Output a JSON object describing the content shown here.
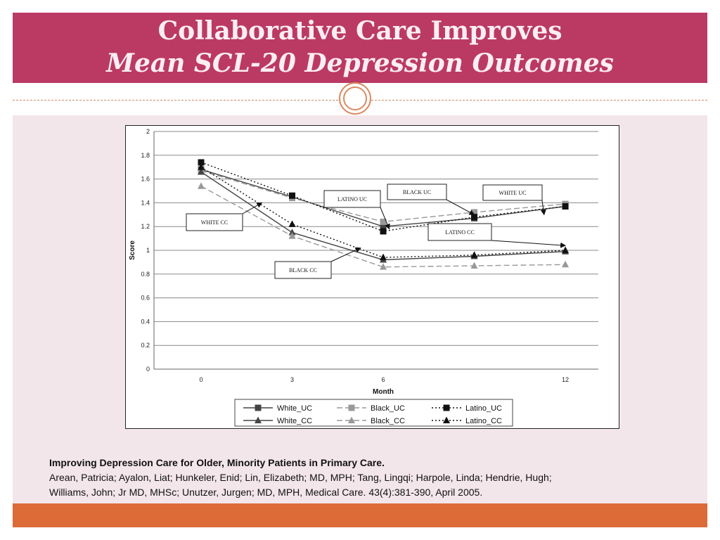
{
  "slide": {
    "title_line1": "Collaborative Care Improves",
    "title_line2": "Mean SCL-20 Depression Outcomes",
    "colors": {
      "header": "#bb3a64",
      "background": "#f3e6ea",
      "footer": "#dd6b38",
      "ornament": "#d88a62"
    }
  },
  "citation": {
    "title": "Improving Depression Care for Older, Minority Patients in Primary Care.",
    "line1": "Arean, Patricia; Ayalon, Liat; Hunkeler, Enid; Lin, Elizabeth;  MD, MPH; Tang, Lingqi; Harpole, Linda; Hendrie, Hugh;",
    "line2": "Williams, John;  Jr MD, MHSc; Unutzer, Jurgen; MD, MPH, Medical Care. 43(4):381-390, April 2005."
  },
  "chart_data": {
    "type": "line",
    "xlabel": "Month",
    "ylabel": "Score",
    "x_ticks": [
      "0",
      "3",
      "6",
      "12"
    ],
    "y_ticks": [
      "0",
      "0.2",
      "0.4",
      "0.6",
      "0.8",
      "1",
      "1.2",
      "1.4",
      "1.6",
      "1.8",
      "2"
    ],
    "xlim": [
      0,
      12
    ],
    "ylim": [
      0,
      2
    ],
    "grid": "horizontal",
    "legend_position": "bottom",
    "series": [
      {
        "name": "White_UC",
        "x": [
          0,
          3,
          6,
          9,
          12
        ],
        "values": [
          1.68,
          1.45,
          1.2,
          1.27,
          1.37
        ],
        "marker": "square",
        "dash": "solid",
        "color": "#444444"
      },
      {
        "name": "Black_UC",
        "x": [
          0,
          3,
          6,
          9,
          12
        ],
        "values": [
          1.67,
          1.44,
          1.24,
          1.32,
          1.39
        ],
        "marker": "square",
        "dash": "dashed",
        "color": "#999999"
      },
      {
        "name": "Latino_UC",
        "x": [
          0,
          3,
          6,
          9,
          12
        ],
        "values": [
          1.74,
          1.46,
          1.16,
          1.28,
          1.37
        ],
        "marker": "square",
        "dash": "dotted",
        "color": "#111111"
      },
      {
        "name": "White_CC",
        "x": [
          0,
          3,
          6,
          9,
          12
        ],
        "values": [
          1.66,
          1.15,
          0.92,
          0.95,
          0.99
        ],
        "marker": "triangle",
        "dash": "solid",
        "color": "#444444"
      },
      {
        "name": "Black_CC",
        "x": [
          0,
          3,
          6,
          9,
          12
        ],
        "values": [
          1.54,
          1.12,
          0.86,
          0.87,
          0.88
        ],
        "marker": "triangle",
        "dash": "dashed",
        "color": "#999999"
      },
      {
        "name": "Latino_CC",
        "x": [
          0,
          3,
          6,
          9,
          12
        ],
        "values": [
          1.7,
          1.22,
          0.94,
          0.96,
          1.0
        ],
        "marker": "triangle",
        "dash": "dotted",
        "color": "#111111"
      }
    ],
    "annotations": [
      {
        "label": "WHITE CC",
        "arrow_to_month": 2.0,
        "arrow_to_value": 1.4
      },
      {
        "label": "BLACK CC",
        "arrow_to_month": 5.25,
        "arrow_to_value": 1.02
      },
      {
        "label": "LATINO UC",
        "arrow_to_month": 6.2,
        "arrow_to_value": 1.18
      },
      {
        "label": "BLACK UC",
        "arrow_to_month": 9.0,
        "arrow_to_value": 1.3
      },
      {
        "label": "WHITE UC",
        "arrow_to_month": 11.3,
        "arrow_to_value": 1.3
      },
      {
        "label": "LATINO CC",
        "arrow_to_month": 12.0,
        "arrow_to_value": 1.04
      }
    ]
  }
}
